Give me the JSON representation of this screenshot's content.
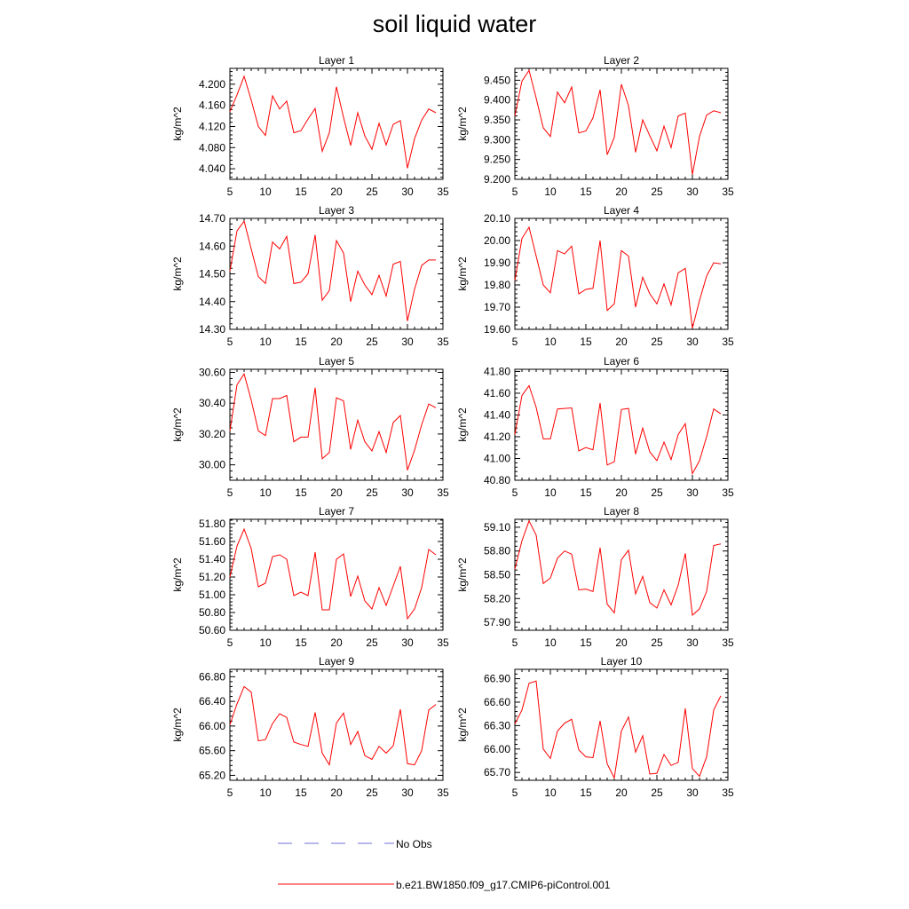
{
  "title": "soil liquid water",
  "legend": [
    {
      "label": "No Obs",
      "color": "#6f6fd8",
      "style": "dashed"
    },
    {
      "label": "b.e21.BW1850.f09_g17.CMIP6-piControl.001",
      "color": "#ff0000",
      "style": "solid"
    }
  ],
  "chart_data": [
    {
      "type": "line",
      "title": "Layer 1",
      "ylabel": "kg/m^2",
      "xlim": [
        5,
        35
      ],
      "xticks": [
        5,
        10,
        15,
        20,
        25,
        30,
        35
      ],
      "ylim": [
        4.02,
        4.23
      ],
      "yticks": [
        4.04,
        4.08,
        4.12,
        4.16,
        4.2
      ],
      "ydecimals": 3,
      "x": [
        5,
        6,
        7,
        8,
        9,
        10,
        11,
        12,
        13,
        14,
        15,
        16,
        17,
        18,
        19,
        20,
        21,
        22,
        23,
        24,
        25,
        26,
        27,
        28,
        29,
        30,
        31,
        32,
        33,
        34
      ],
      "series": [
        {
          "color": "#ff0000",
          "values": [
            4.148,
            4.18,
            4.215,
            4.17,
            4.12,
            4.103,
            4.178,
            4.153,
            4.168,
            4.108,
            4.112,
            4.134,
            4.154,
            4.073,
            4.108,
            4.195,
            4.137,
            4.084,
            4.146,
            4.102,
            4.077,
            4.126,
            4.085,
            4.124,
            4.131,
            4.041,
            4.097,
            4.132,
            4.153,
            4.146
          ]
        }
      ]
    },
    {
      "type": "line",
      "title": "Layer 2",
      "ylabel": "kg/m^2",
      "xlim": [
        5,
        35
      ],
      "xticks": [
        5,
        10,
        15,
        20,
        25,
        30,
        35
      ],
      "ylim": [
        9.2,
        9.48
      ],
      "yticks": [
        9.2,
        9.25,
        9.3,
        9.35,
        9.4,
        9.45
      ],
      "ydecimals": 3,
      "x": [
        5,
        6,
        7,
        8,
        9,
        10,
        11,
        12,
        13,
        14,
        15,
        16,
        17,
        18,
        19,
        20,
        21,
        22,
        23,
        24,
        25,
        26,
        27,
        28,
        29,
        30,
        31,
        32,
        33,
        34
      ],
      "series": [
        {
          "color": "#ff0000",
          "values": [
            9.36,
            9.448,
            9.475,
            9.405,
            9.33,
            9.308,
            9.42,
            9.393,
            9.433,
            9.317,
            9.322,
            9.355,
            9.426,
            9.262,
            9.306,
            9.44,
            9.386,
            9.268,
            9.35,
            9.31,
            9.272,
            9.334,
            9.28,
            9.36,
            9.367,
            9.212,
            9.308,
            9.362,
            9.373,
            9.368
          ]
        }
      ]
    },
    {
      "type": "line",
      "title": "Layer 3",
      "ylabel": "kg/m^2",
      "xlim": [
        5,
        35
      ],
      "xticks": [
        5,
        10,
        15,
        20,
        25,
        30,
        35
      ],
      "ylim": [
        14.3,
        14.7
      ],
      "yticks": [
        14.3,
        14.4,
        14.5,
        14.6,
        14.7
      ],
      "ydecimals": 2,
      "x": [
        5,
        6,
        7,
        8,
        9,
        10,
        11,
        12,
        13,
        14,
        15,
        16,
        17,
        18,
        19,
        20,
        21,
        22,
        23,
        24,
        25,
        26,
        27,
        28,
        29,
        30,
        31,
        32,
        33,
        34
      ],
      "series": [
        {
          "color": "#ff0000",
          "values": [
            14.51,
            14.655,
            14.69,
            14.59,
            14.49,
            14.465,
            14.615,
            14.59,
            14.635,
            14.465,
            14.47,
            14.5,
            14.64,
            14.405,
            14.44,
            14.62,
            14.575,
            14.4,
            14.51,
            14.46,
            14.425,
            14.495,
            14.42,
            14.535,
            14.545,
            14.33,
            14.445,
            14.53,
            14.55,
            14.55
          ]
        }
      ]
    },
    {
      "type": "line",
      "title": "Layer 4",
      "ylabel": "kg/m^2",
      "xlim": [
        5,
        35
      ],
      "xticks": [
        5,
        10,
        15,
        20,
        25,
        30,
        35
      ],
      "ylim": [
        19.6,
        20.1
      ],
      "yticks": [
        19.6,
        19.7,
        19.8,
        19.9,
        20.0,
        20.1
      ],
      "ydecimals": 2,
      "x": [
        5,
        6,
        7,
        8,
        9,
        10,
        11,
        12,
        13,
        14,
        15,
        16,
        17,
        18,
        19,
        20,
        21,
        22,
        23,
        24,
        25,
        26,
        27,
        28,
        29,
        30,
        31,
        32,
        33,
        34
      ],
      "series": [
        {
          "color": "#ff0000",
          "values": [
            19.82,
            20.01,
            20.06,
            19.93,
            19.8,
            19.765,
            19.955,
            19.94,
            19.975,
            19.76,
            19.78,
            19.785,
            20.0,
            19.685,
            19.715,
            19.955,
            19.93,
            19.7,
            19.835,
            19.76,
            19.715,
            19.805,
            19.71,
            19.855,
            19.875,
            19.605,
            19.73,
            19.84,
            19.9,
            19.895
          ]
        }
      ]
    },
    {
      "type": "line",
      "title": "Layer 5",
      "ylabel": "kg/m^2",
      "xlim": [
        5,
        35
      ],
      "xticks": [
        5,
        10,
        15,
        20,
        25,
        30,
        35
      ],
      "ylim": [
        29.9,
        30.62
      ],
      "yticks": [
        30.0,
        30.2,
        30.4,
        30.6
      ],
      "ydecimals": 2,
      "x": [
        5,
        6,
        7,
        8,
        9,
        10,
        11,
        12,
        13,
        14,
        15,
        16,
        17,
        18,
        19,
        20,
        21,
        22,
        23,
        24,
        25,
        26,
        27,
        28,
        29,
        30,
        31,
        32,
        33,
        34
      ],
      "series": [
        {
          "color": "#ff0000",
          "values": [
            30.22,
            30.52,
            30.59,
            30.42,
            30.22,
            30.19,
            30.43,
            30.43,
            30.45,
            30.15,
            30.18,
            30.18,
            30.5,
            30.04,
            30.08,
            30.435,
            30.415,
            30.1,
            30.29,
            30.15,
            30.09,
            30.215,
            30.08,
            30.275,
            30.32,
            29.965,
            30.095,
            30.26,
            30.395,
            30.37
          ]
        }
      ]
    },
    {
      "type": "line",
      "title": "Layer 6",
      "ylabel": "kg/m^2",
      "xlim": [
        5,
        35
      ],
      "xticks": [
        5,
        10,
        15,
        20,
        25,
        30,
        35
      ],
      "ylim": [
        40.8,
        41.82
      ],
      "yticks": [
        40.8,
        41.0,
        41.2,
        41.4,
        41.6,
        41.8
      ],
      "ydecimals": 2,
      "x": [
        5,
        6,
        7,
        8,
        9,
        10,
        11,
        12,
        13,
        14,
        15,
        16,
        17,
        18,
        19,
        20,
        21,
        22,
        23,
        24,
        25,
        26,
        27,
        28,
        29,
        30,
        31,
        32,
        33,
        34
      ],
      "series": [
        {
          "color": "#ff0000",
          "values": [
            41.22,
            41.58,
            41.67,
            41.47,
            41.18,
            41.18,
            41.455,
            41.46,
            41.465,
            41.07,
            41.1,
            41.08,
            41.51,
            40.94,
            40.97,
            41.45,
            41.46,
            41.04,
            41.28,
            41.06,
            40.98,
            41.15,
            40.99,
            41.22,
            41.32,
            40.86,
            40.98,
            41.2,
            41.455,
            41.41
          ]
        }
      ]
    },
    {
      "type": "line",
      "title": "Layer 7",
      "ylabel": "kg/m^2",
      "xlim": [
        5,
        35
      ],
      "xticks": [
        5,
        10,
        15,
        20,
        25,
        30,
        35
      ],
      "ylim": [
        50.6,
        51.85
      ],
      "yticks": [
        50.6,
        50.8,
        51.0,
        51.2,
        51.4,
        51.6,
        51.8
      ],
      "ydecimals": 2,
      "x": [
        5,
        6,
        7,
        8,
        9,
        10,
        11,
        12,
        13,
        14,
        15,
        16,
        17,
        18,
        19,
        20,
        21,
        22,
        23,
        24,
        25,
        26,
        27,
        28,
        29,
        30,
        31,
        32,
        33,
        34
      ],
      "series": [
        {
          "color": "#ff0000",
          "values": [
            51.2,
            51.55,
            51.74,
            51.52,
            51.09,
            51.13,
            51.43,
            51.45,
            51.4,
            50.99,
            51.03,
            50.99,
            51.48,
            50.83,
            50.83,
            51.4,
            51.46,
            50.98,
            51.21,
            50.93,
            50.84,
            51.08,
            50.88,
            51.1,
            51.32,
            50.73,
            50.84,
            51.08,
            51.51,
            51.45
          ]
        }
      ]
    },
    {
      "type": "line",
      "title": "Layer 8",
      "ylabel": "kg/m^2",
      "xlim": [
        5,
        35
      ],
      "xticks": [
        5,
        10,
        15,
        20,
        25,
        30,
        35
      ],
      "ylim": [
        57.8,
        59.2
      ],
      "yticks": [
        57.9,
        58.2,
        58.5,
        58.8,
        59.1
      ],
      "ydecimals": 2,
      "x": [
        5,
        6,
        7,
        8,
        9,
        10,
        11,
        12,
        13,
        14,
        15,
        16,
        17,
        18,
        19,
        20,
        21,
        22,
        23,
        24,
        25,
        26,
        27,
        28,
        29,
        30,
        31,
        32,
        33,
        34
      ],
      "series": [
        {
          "color": "#ff0000",
          "values": [
            58.57,
            58.93,
            59.18,
            59.0,
            58.39,
            58.46,
            58.71,
            58.8,
            58.76,
            58.31,
            58.32,
            58.29,
            58.84,
            58.13,
            58.02,
            58.69,
            58.81,
            58.26,
            58.48,
            58.15,
            58.08,
            58.31,
            58.12,
            58.37,
            58.77,
            57.99,
            58.07,
            58.29,
            58.87,
            58.89
          ]
        }
      ]
    },
    {
      "type": "line",
      "title": "Layer 9",
      "ylabel": "kg/m^2",
      "xlim": [
        5,
        35
      ],
      "xticks": [
        5,
        10,
        15,
        20,
        25,
        30,
        35
      ],
      "ylim": [
        65.12,
        66.92
      ],
      "yticks": [
        65.2,
        65.6,
        66.0,
        66.4,
        66.8
      ],
      "ydecimals": 2,
      "x": [
        5,
        6,
        7,
        8,
        9,
        10,
        11,
        12,
        13,
        14,
        15,
        16,
        17,
        18,
        19,
        20,
        21,
        22,
        23,
        24,
        25,
        26,
        27,
        28,
        29,
        30,
        31,
        32,
        33,
        34
      ],
      "series": [
        {
          "color": "#ff0000",
          "values": [
            66.02,
            66.36,
            66.64,
            66.55,
            65.76,
            65.78,
            66.04,
            66.2,
            66.14,
            65.74,
            65.7,
            65.67,
            66.22,
            65.56,
            65.37,
            66.05,
            66.21,
            65.7,
            65.91,
            65.52,
            65.46,
            65.67,
            65.56,
            65.68,
            66.27,
            65.39,
            65.37,
            65.6,
            66.26,
            66.35
          ]
        }
      ]
    },
    {
      "type": "line",
      "title": "Layer 10",
      "ylabel": "kg/m^2",
      "xlim": [
        5,
        35
      ],
      "xticks": [
        5,
        10,
        15,
        20,
        25,
        30,
        35
      ],
      "ylim": [
        65.6,
        67.02
      ],
      "yticks": [
        65.7,
        66.0,
        66.3,
        66.6,
        66.9
      ],
      "ydecimals": 2,
      "x": [
        5,
        6,
        7,
        8,
        9,
        10,
        11,
        12,
        13,
        14,
        15,
        16,
        17,
        18,
        19,
        20,
        21,
        22,
        23,
        24,
        25,
        26,
        27,
        28,
        29,
        30,
        31,
        32,
        33,
        34
      ],
      "series": [
        {
          "color": "#ff0000",
          "values": [
            66.32,
            66.5,
            66.84,
            66.87,
            66.0,
            65.88,
            66.23,
            66.33,
            66.38,
            65.99,
            65.9,
            65.89,
            66.36,
            65.81,
            65.63,
            66.23,
            66.41,
            65.96,
            66.17,
            65.68,
            65.69,
            65.93,
            65.79,
            65.83,
            66.52,
            65.75,
            65.65,
            65.9,
            66.5,
            66.68
          ]
        }
      ]
    }
  ]
}
